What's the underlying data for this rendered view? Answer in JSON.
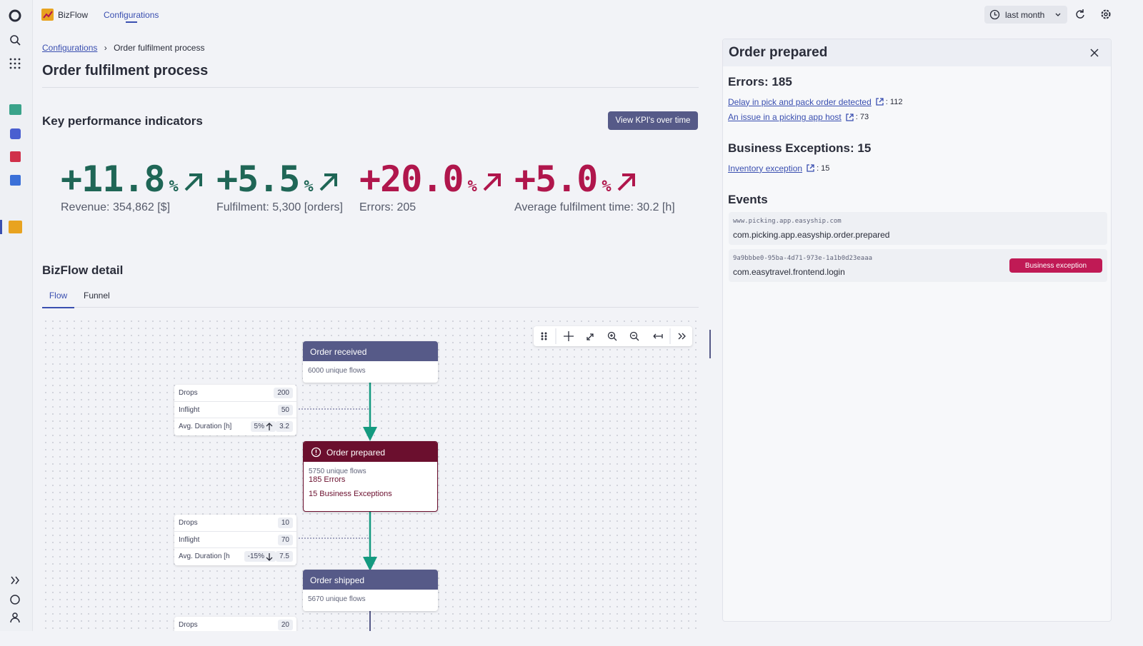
{
  "topbar": {
    "app": "BizFlow",
    "nav": "Configurations",
    "timeframe": "last month"
  },
  "breadcrumb": {
    "parent": "Configurations",
    "current": "Order fulfilment process"
  },
  "page_title": "Order fulfilment process",
  "kpi": {
    "heading": "Key performance indicators",
    "button": "View KPI's over time",
    "items": [
      {
        "change": "+11.8",
        "unit": "%",
        "label": "Revenue: 354,862 [$]"
      },
      {
        "change": "+5.5",
        "unit": "%",
        "label": "Fulfilment: 5,300 [orders]"
      },
      {
        "change": "+20.0",
        "unit": "%",
        "label": "Errors: 205"
      },
      {
        "change": "+5.0",
        "unit": "%",
        "label": "Average fulfilment time: 30.2 [h]"
      }
    ]
  },
  "detail": {
    "heading": "BizFlow detail",
    "tabs": [
      "Flow",
      "Funnel"
    ],
    "nodes": [
      {
        "title": "Order received",
        "flows": "6000 unique flows"
      },
      {
        "title": "Order prepared",
        "flows": "5750 unique flows",
        "errors": "185 Errors",
        "exceptions": "15 Business Exceptions"
      },
      {
        "title": "Order shipped",
        "flows": "5670 unique flows"
      }
    ],
    "stats": [
      {
        "rows": [
          {
            "label": "Drops",
            "value": 200
          },
          {
            "label": "Inflight",
            "value": 50
          },
          {
            "label": "Avg. Duration [h]",
            "change": "5%",
            "value": 3.2
          }
        ]
      },
      {
        "rows": [
          {
            "label": "Drops",
            "value": 10
          },
          {
            "label": "Inflight",
            "value": 70
          },
          {
            "label": "Avg. Duration [h",
            "change": "-15%",
            "value": 7.5
          }
        ]
      },
      {
        "rows": [
          {
            "label": "Drops",
            "value": 20
          }
        ]
      }
    ]
  },
  "panel": {
    "title": "Order prepared",
    "errors": {
      "heading": "Errors: 185",
      "items": [
        {
          "link": "Delay in pick and pack order detected",
          "count": ": 112"
        },
        {
          "link": "An issue in a picking app host",
          "count": ": 73"
        }
      ]
    },
    "exceptions": {
      "heading": "Business Exceptions: 15",
      "items": [
        {
          "link": "Inventory exception",
          "count": ": 15"
        }
      ]
    },
    "events": {
      "heading": "Events",
      "items": [
        {
          "source": "www.picking.app.easyship.com",
          "name": "com.picking.app.easyship.order.prepared"
        },
        {
          "source": "9a9bbbe0-95ba-4d71-973e-1a1b0d23eaaa",
          "name": "com.easytravel.frontend.login",
          "badge": "Business exception"
        }
      ]
    }
  }
}
